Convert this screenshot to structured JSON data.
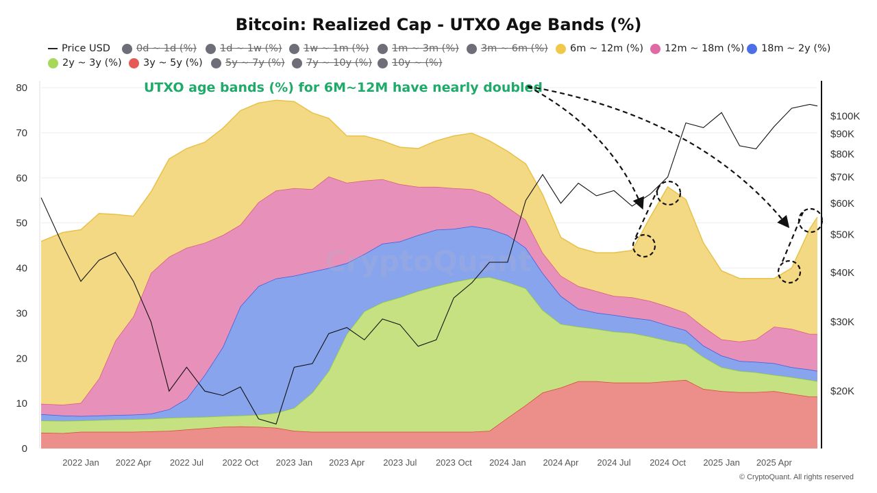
{
  "chart_data": {
    "type": "area",
    "stacked": true,
    "title": "Bitcoin: Realized Cap - UTXO Age Bands (%)",
    "xlim": [
      "2021-10-25",
      "2025-06-14"
    ],
    "ylim": [
      0,
      80
    ],
    "y_ticks": [
      0,
      10,
      20,
      30,
      40,
      50,
      60,
      70,
      80
    ],
    "y2_scale": "log",
    "y2lim": [
      14300,
      118000
    ],
    "y2_ticks": [
      {
        "v": 20000,
        "label": "$20K"
      },
      {
        "v": 30000,
        "label": "$30K"
      },
      {
        "v": 40000,
        "label": "$40K"
      },
      {
        "v": 50000,
        "label": "$50K"
      },
      {
        "v": 60000,
        "label": "$60K"
      },
      {
        "v": 70000,
        "label": "$70K"
      },
      {
        "v": 80000,
        "label": "$80K"
      },
      {
        "v": 90000,
        "label": "$90K"
      },
      {
        "v": 100000,
        "label": "$100K"
      }
    ],
    "x_ticks": [
      {
        "date": "2022-01-01",
        "label": "2022 Jan"
      },
      {
        "date": "2022-04-01",
        "label": "2022 Apr"
      },
      {
        "date": "2022-07-01",
        "label": "2022 Jul"
      },
      {
        "date": "2022-10-01",
        "label": "2022 Oct"
      },
      {
        "date": "2023-01-01",
        "label": "2023 Jan"
      },
      {
        "date": "2023-04-01",
        "label": "2023 Apr"
      },
      {
        "date": "2023-07-01",
        "label": "2023 Jul"
      },
      {
        "date": "2023-10-01",
        "label": "2023 Oct"
      },
      {
        "date": "2024-01-01",
        "label": "2024 Jan"
      },
      {
        "date": "2024-04-01",
        "label": "2024 Apr"
      },
      {
        "date": "2024-07-01",
        "label": "2024 Jul"
      },
      {
        "date": "2024-10-01",
        "label": "2024 Oct"
      },
      {
        "date": "2025-01-01",
        "label": "2025 Jan"
      },
      {
        "date": "2025-04-01",
        "label": "2025 Apr"
      }
    ],
    "grid": true,
    "legend_placement": "top",
    "legend": [
      {
        "label": "Price USD",
        "kind": "line",
        "visible": true
      },
      {
        "label": "0d ~ 1d (%)",
        "visible": false
      },
      {
        "label": "1d ~ 1w (%)",
        "visible": false
      },
      {
        "label": "1w ~ 1m (%)",
        "visible": false
      },
      {
        "label": "1m ~ 3m (%)",
        "visible": false
      },
      {
        "label": "3m ~ 6m (%)",
        "visible": false
      },
      {
        "label": "6m ~ 12m (%)",
        "visible": true,
        "color": "#f0c94a"
      },
      {
        "label": "12m ~ 18m (%)",
        "visible": true,
        "color": "#e06aa6"
      },
      {
        "label": "18m ~ 2y (%)",
        "visible": true,
        "color": "#4c6fe8"
      },
      {
        "label": "2y ~ 3y (%)",
        "visible": true,
        "color": "#a8d85a"
      },
      {
        "label": "3y ~ 5y (%)",
        "visible": true,
        "color": "#e55a57"
      },
      {
        "label": "5y ~ 7y (%)",
        "visible": false
      },
      {
        "label": "7y ~ 10y (%)",
        "visible": false
      },
      {
        "label": "10y ~ (%)",
        "visible": false
      }
    ],
    "dates": [
      "2021-10-25",
      "2021-12-01",
      "2022-01-01",
      "2022-02-01",
      "2022-03-01",
      "2022-04-01",
      "2022-05-01",
      "2022-06-01",
      "2022-07-01",
      "2022-08-01",
      "2022-09-01",
      "2022-10-01",
      "2022-11-01",
      "2022-12-01",
      "2023-01-01",
      "2023-02-01",
      "2023-03-01",
      "2023-04-01",
      "2023-05-01",
      "2023-06-01",
      "2023-07-01",
      "2023-08-01",
      "2023-09-01",
      "2023-10-01",
      "2023-11-01",
      "2023-12-01",
      "2024-01-01",
      "2024-02-01",
      "2024-03-01",
      "2024-04-01",
      "2024-05-01",
      "2024-06-01",
      "2024-07-01",
      "2024-08-01",
      "2024-09-01",
      "2024-10-01",
      "2024-11-01",
      "2024-12-01",
      "2025-01-01",
      "2025-02-01",
      "2025-03-01",
      "2025-04-01",
      "2025-05-01",
      "2025-06-01",
      "2025-06-14"
    ],
    "series": [
      {
        "name": "3y ~ 5y (%)",
        "fill": "#ec8f8b",
        "line": "#d9453a",
        "values": [
          3.5,
          3.4,
          3.7,
          3.7,
          3.7,
          3.7,
          3.8,
          3.9,
          4.2,
          4.5,
          4.8,
          4.9,
          4.8,
          4.6,
          3.9,
          3.7,
          3.7,
          3.7,
          3.7,
          3.7,
          3.7,
          3.7,
          3.7,
          3.7,
          3.7,
          3.9,
          6.8,
          9.6,
          12.4,
          13.5,
          14.9,
          14.9,
          14.6,
          14.6,
          14.6,
          14.9,
          15.2,
          13.2,
          12.7,
          12.5,
          12.5,
          12.7,
          12.1,
          11.5,
          11.5
        ]
      },
      {
        "name": "2y ~ 3y (%)",
        "fill": "#c5e181",
        "line": "#8fcc3a",
        "values": [
          2.7,
          2.7,
          2.5,
          2.6,
          2.7,
          2.8,
          2.8,
          2.9,
          2.7,
          2.5,
          2.4,
          2.4,
          2.7,
          3.3,
          5.1,
          8.7,
          13.5,
          21.7,
          26.7,
          28.7,
          29.8,
          31.2,
          32.3,
          33.2,
          34.0,
          34.1,
          30.1,
          25.9,
          18.3,
          14.1,
          12.1,
          11.6,
          11.3,
          11.0,
          10.2,
          9.0,
          7.9,
          7.1,
          5.3,
          4.7,
          4.4,
          3.6,
          3.7,
          3.7,
          3.4
        ]
      },
      {
        "name": "18m ~ 2y (%)",
        "fill": "#87a4ec",
        "line": "#3b5be0",
        "values": [
          1.4,
          1.2,
          1.0,
          1.0,
          1.0,
          1.0,
          1.1,
          1.9,
          4.1,
          9.3,
          15.3,
          24.2,
          28.5,
          29.8,
          29.3,
          26.8,
          22.8,
          15.7,
          12.7,
          13.0,
          12.4,
          12.4,
          12.5,
          11.8,
          11.6,
          10.7,
          10.4,
          9.0,
          8.2,
          6.2,
          4.0,
          3.6,
          3.7,
          3.4,
          3.7,
          3.4,
          3.1,
          2.5,
          2.6,
          2.2,
          2.3,
          2.6,
          2.2,
          2.3,
          2.3
        ]
      },
      {
        "name": "12m ~ 18m (%)",
        "fill": "#e790b9",
        "line": "#d9577f",
        "values": [
          2.3,
          2.4,
          2.9,
          8.2,
          16.5,
          21.8,
          31.2,
          33.8,
          33.5,
          29.3,
          24.8,
          18.1,
          18.6,
          19.5,
          19.4,
          18.3,
          20.3,
          17.8,
          16.3,
          14.3,
          12.7,
          10.7,
          9.5,
          9.0,
          8.2,
          7.6,
          6.2,
          6.2,
          4.5,
          4.5,
          5.0,
          4.8,
          4.2,
          4.5,
          4.2,
          4.2,
          3.9,
          4.2,
          3.6,
          4.3,
          5.0,
          8.1,
          8.5,
          7.9,
          8.2
        ]
      },
      {
        "name": "6m ~ 12m (%)",
        "fill": "#f3d983",
        "line": "#e8c14a",
        "values": [
          36.0,
          38.2,
          38.4,
          36.6,
          28.0,
          22.2,
          18.0,
          21.7,
          22.0,
          22.3,
          23.7,
          25.3,
          22.0,
          20.0,
          19.2,
          16.9,
          12.9,
          10.4,
          9.9,
          8.5,
          8.2,
          8.5,
          10.2,
          11.6,
          12.4,
          11.9,
          12.4,
          12.4,
          12.9,
          8.5,
          8.5,
          8.5,
          9.6,
          10.4,
          18.6,
          26.5,
          25.1,
          18.6,
          15.2,
          14.0,
          13.5,
          10.7,
          13.5,
          23.3,
          25.9
        ]
      }
    ],
    "price": {
      "name": "Price USD",
      "axis": "right",
      "values": [
        62000,
        47000,
        38000,
        43000,
        45000,
        38000,
        30000,
        20000,
        23000,
        20000,
        19500,
        20500,
        17000,
        16500,
        23000,
        23500,
        28000,
        29000,
        27000,
        30500,
        29500,
        26000,
        27000,
        34500,
        37700,
        42500,
        42500,
        61000,
        71000,
        60000,
        67500,
        62700,
        64600,
        59000,
        63300,
        70000,
        96000,
        93400,
        102000,
        84000,
        82500,
        94000,
        104600,
        107000,
        106000
      ]
    },
    "annotations": [
      {
        "text": "UTXO age bands (%) for 6M~12M have nearly doubled",
        "color": "#1faa6a"
      }
    ]
  },
  "watermark": "CryptoQuant",
  "copyright": "© CryptoQuant. All rights reserved"
}
